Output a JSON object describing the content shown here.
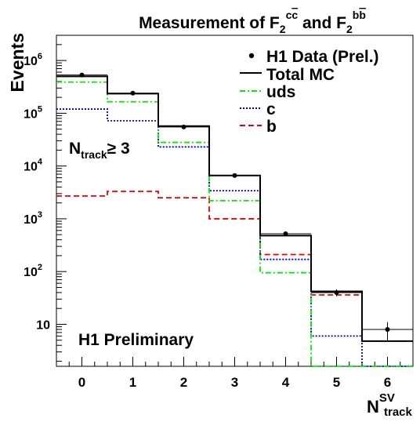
{
  "chart_data": {
    "type": "step",
    "title": {
      "prefix": "Measurement of F",
      "sub1": "2",
      "sup1": "c",
      "sup1_bar": "c",
      "mid": " and F",
      "sub2": "2",
      "sup2": "b",
      "sup2_bar": "b"
    },
    "ylabel": "Events",
    "xlabel": {
      "main": "N",
      "sup": "SV",
      "sub": "track"
    },
    "x_ticks": [
      "0",
      "1",
      "2",
      "3",
      "4",
      "5",
      "6"
    ],
    "x_range": [
      -0.5,
      6.5
    ],
    "y_scale": "log",
    "y_range": [
      1.6,
      3000000
    ],
    "y_ticks": [
      {
        "value": 10,
        "label": "10",
        "sup": ""
      },
      {
        "value": 100,
        "label": "10",
        "sup": "2"
      },
      {
        "value": 1000,
        "label": "10",
        "sup": "3"
      },
      {
        "value": 10000,
        "label": "10",
        "sup": "4"
      },
      {
        "value": 100000,
        "label": "10",
        "sup": "5"
      },
      {
        "value": 1000000,
        "label": "10",
        "sup": "6"
      }
    ],
    "bins": [
      0,
      1,
      2,
      3,
      4,
      5,
      6
    ],
    "series": [
      {
        "name": "Total MC",
        "style": "solid",
        "color": "#000000",
        "values": [
          500000,
          235000,
          57000,
          6600,
          480,
          42,
          4.8
        ]
      },
      {
        "name": "uds",
        "style": "dashdot",
        "color": "#00ee00",
        "values": [
          390000,
          165000,
          28000,
          2200,
          95,
          1.5,
          1.5
        ]
      },
      {
        "name": "c",
        "style": "dotted",
        "color": "#0000cc",
        "values": [
          120000,
          72000,
          23000,
          3400,
          170,
          6,
          1.5
        ]
      },
      {
        "name": "b",
        "style": "dashed",
        "color": "#ee0000",
        "values": [
          2700,
          3300,
          2500,
          1000,
          210,
          36,
          4.8
        ]
      }
    ],
    "data": {
      "name": "H1 Data (Prel.)",
      "values": [
        530000,
        240000,
        55000,
        6600,
        520,
        40,
        8
      ],
      "errors": [
        20000,
        8000,
        2000,
        300,
        30,
        6,
        3
      ]
    },
    "annotations": {
      "selection": {
        "main": "N",
        "sub": "track",
        "rest": "≥ 3"
      },
      "preliminary": "H1 Preliminary"
    }
  }
}
